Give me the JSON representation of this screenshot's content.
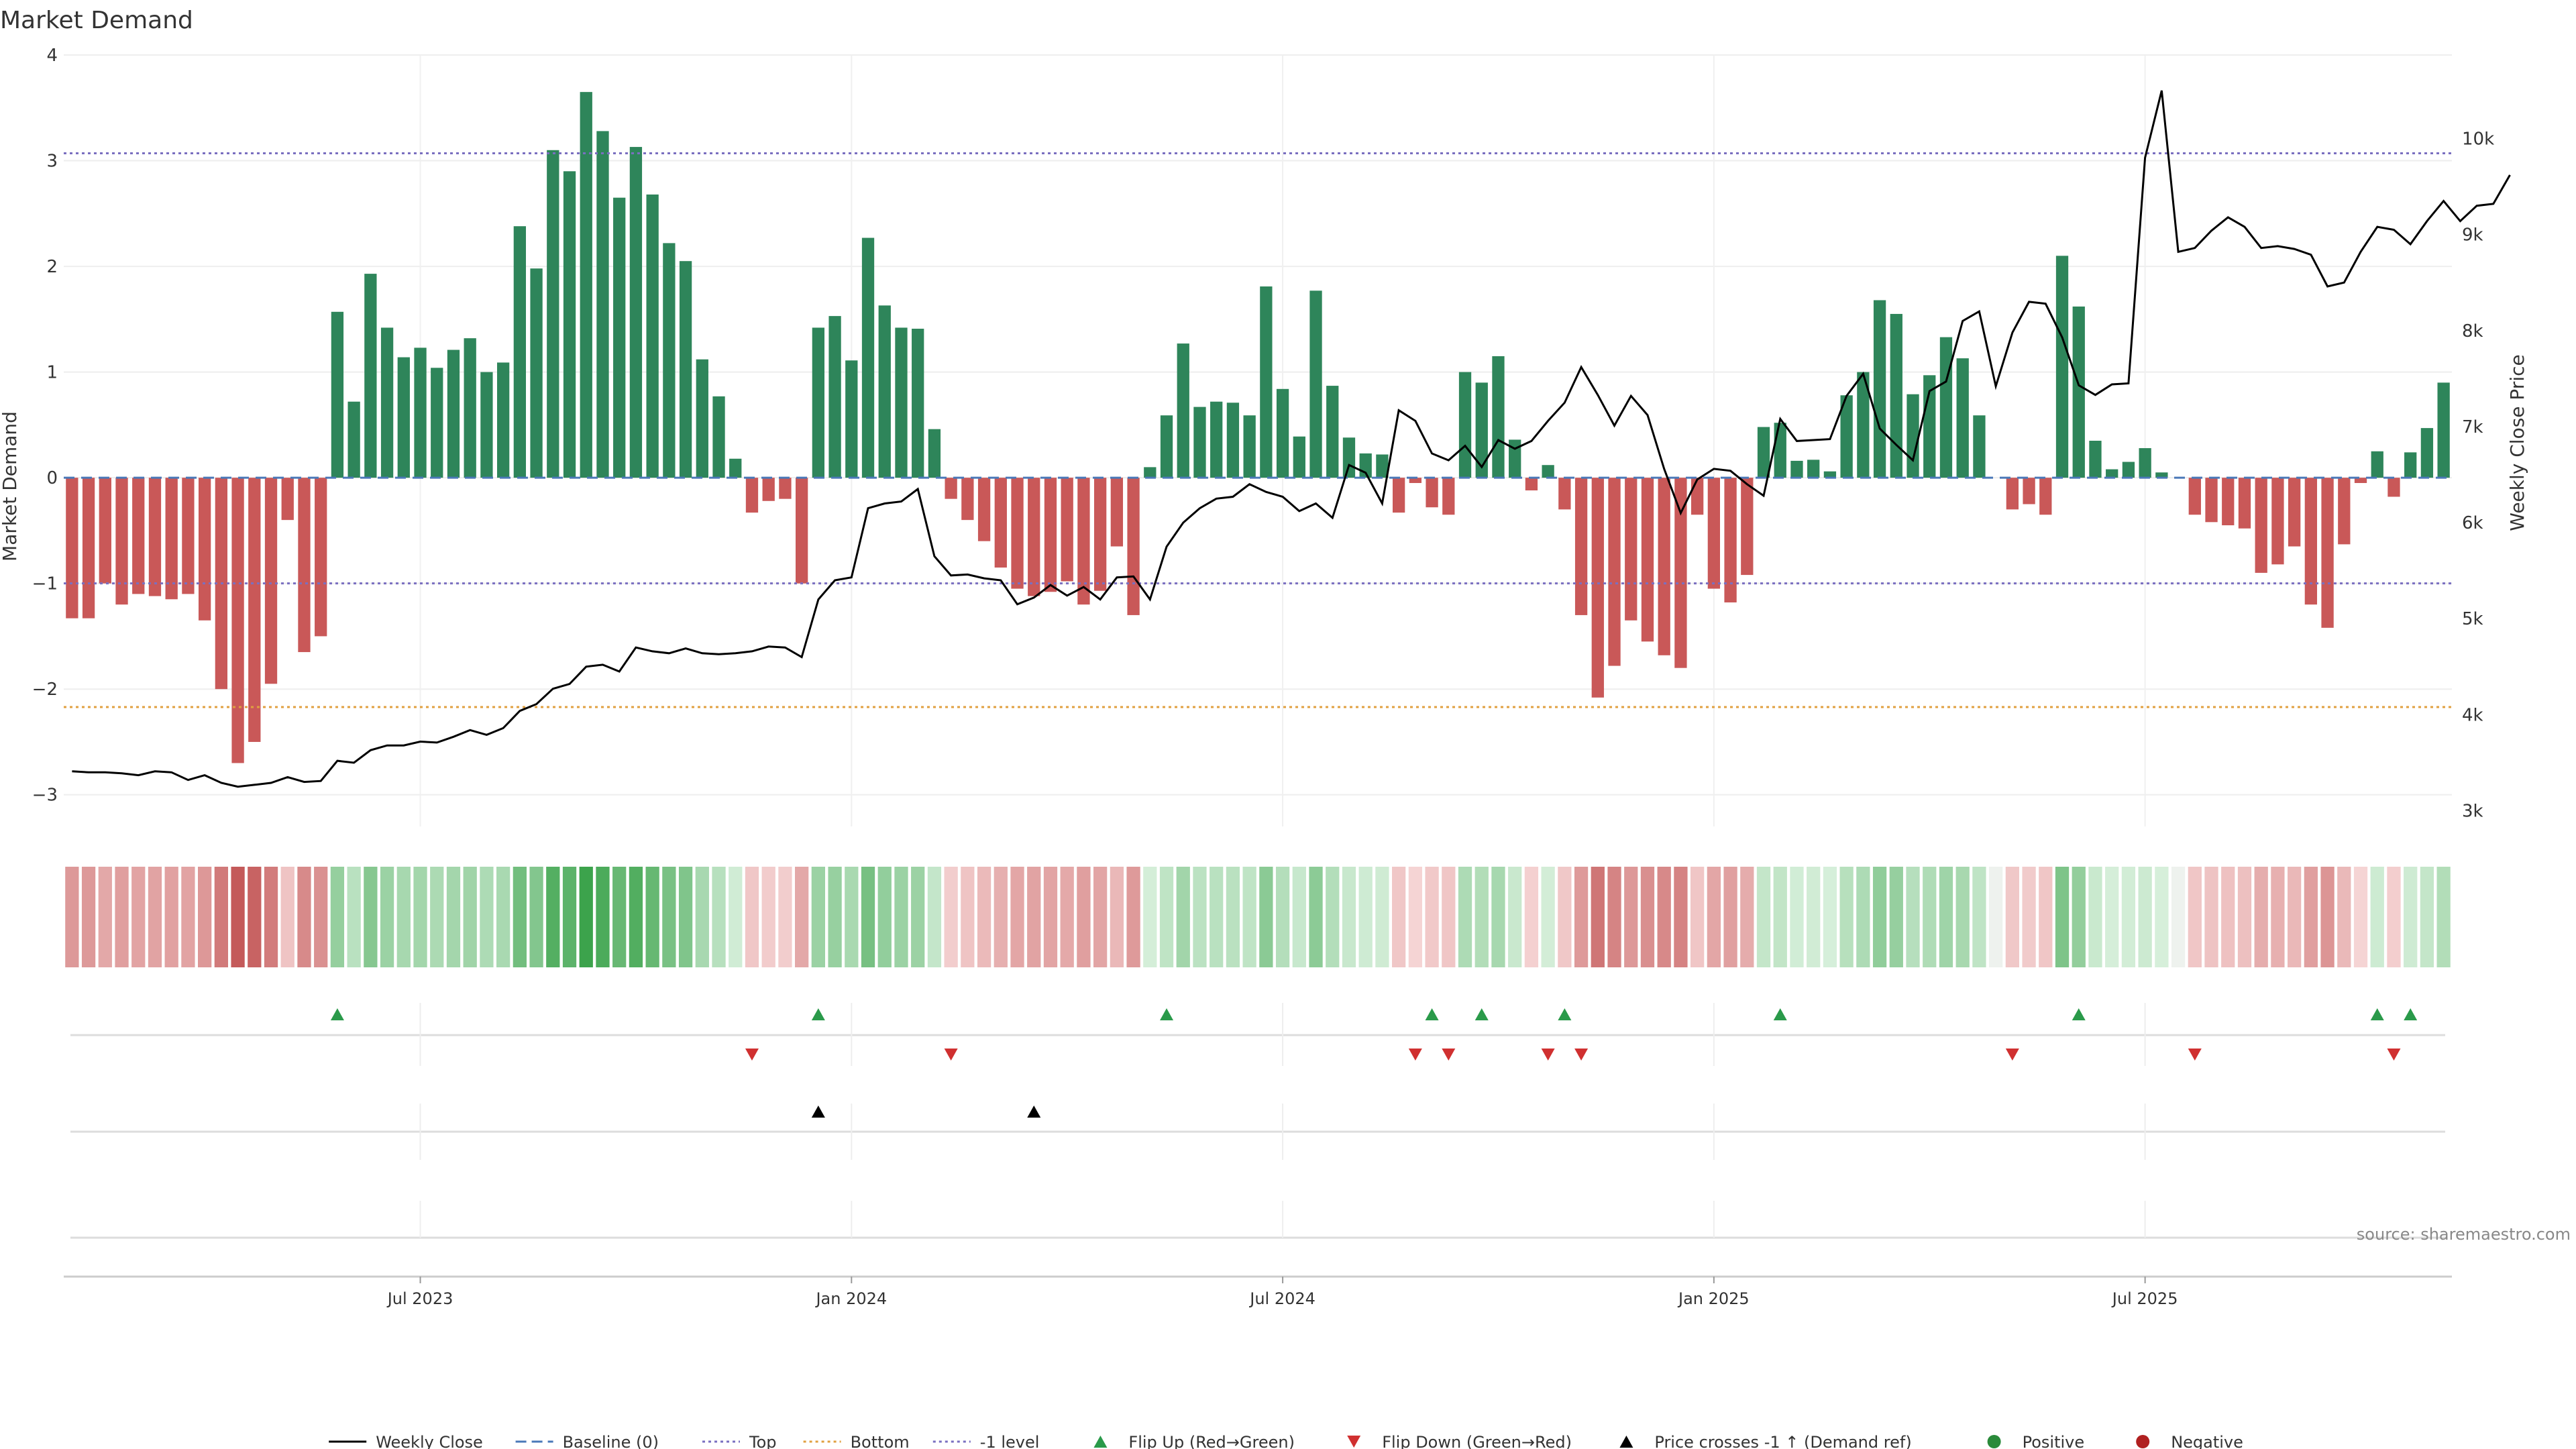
{
  "chart_data": {
    "type": "bar",
    "title": "Market Demand",
    "ylabel_left": "Market Demand",
    "ylabel_right": "Weekly Close Price",
    "ylim_left": [
      -3.3,
      4
    ],
    "ylim_right": [
      2836,
      10870
    ],
    "left_ticks": [
      {
        "value": 4,
        "label": "4"
      },
      {
        "value": 3,
        "label": "3"
      },
      {
        "value": 2,
        "label": "2"
      },
      {
        "value": 1,
        "label": "1"
      },
      {
        "value": 0,
        "label": "0"
      },
      {
        "value": -1,
        "label": "−1"
      },
      {
        "value": -2,
        "label": "−2"
      },
      {
        "value": -3,
        "label": "−3"
      }
    ],
    "right_ticks": [
      {
        "value": 10000,
        "label": "10k"
      },
      {
        "value": 9000,
        "label": "9k"
      },
      {
        "value": 8000,
        "label": "8k"
      },
      {
        "value": 7000,
        "label": "7k"
      },
      {
        "value": 6000,
        "label": "6k"
      },
      {
        "value": 5000,
        "label": "5k"
      },
      {
        "value": 4000,
        "label": "4k"
      },
      {
        "value": 3000,
        "label": "3k"
      }
    ],
    "x_ticks": [
      {
        "week": 21,
        "label": "Jul 2023"
      },
      {
        "week": 47,
        "label": "Jan 2024"
      },
      {
        "week": 73,
        "label": "Jul 2024"
      },
      {
        "week": 99,
        "label": "Jan 2025"
      },
      {
        "week": 125,
        "label": "Jul 2025"
      }
    ],
    "levels": {
      "top": 3.07,
      "bottom": -2.17,
      "minus_one": -1.0,
      "baseline": 0
    },
    "demand": [
      -1.33,
      -1.33,
      -1.0,
      -1.2,
      -1.1,
      -1.12,
      -1.15,
      -1.1,
      -1.35,
      -2.0,
      -2.7,
      -2.5,
      -1.95,
      -0.4,
      -1.65,
      -1.5,
      1.57,
      0.72,
      1.93,
      1.42,
      1.14,
      1.23,
      1.04,
      1.21,
      1.32,
      1.0,
      1.09,
      2.38,
      1.98,
      3.1,
      2.9,
      3.65,
      3.28,
      2.65,
      3.13,
      2.68,
      2.22,
      2.05,
      1.12,
      0.77,
      0.18,
      -0.33,
      -0.22,
      -0.2,
      -1.0,
      1.42,
      1.53,
      1.11,
      2.27,
      1.63,
      1.42,
      1.41,
      0.46,
      -0.2,
      -0.4,
      -0.6,
      -0.85,
      -1.05,
      -1.12,
      -1.08,
      -0.98,
      -1.2,
      -1.07,
      -0.65,
      -1.3,
      0.1,
      0.59,
      1.27,
      0.67,
      0.72,
      0.71,
      0.59,
      1.81,
      0.84,
      0.39,
      1.77,
      0.87,
      0.38,
      0.23,
      0.22,
      -0.33,
      -0.05,
      -0.28,
      -0.35,
      1.0,
      0.9,
      1.15,
      0.36,
      -0.12,
      0.12,
      -0.3,
      -1.3,
      -2.08,
      -1.78,
      -1.35,
      -1.55,
      -1.68,
      -1.8,
      -0.35,
      -1.05,
      -1.18,
      -0.92,
      0.48,
      0.52,
      0.16,
      0.17,
      0.06,
      0.78,
      1.0,
      1.68,
      1.55,
      0.79,
      0.97,
      1.33,
      1.13,
      0.59,
      0.0,
      -0.3,
      -0.25,
      -0.35,
      2.1,
      1.62,
      0.35,
      0.08,
      0.15,
      0.28,
      0.05,
      0.0,
      -0.35,
      -0.42,
      -0.45,
      -0.48,
      -0.9,
      -0.82,
      -0.65,
      -1.2,
      -1.42,
      -0.63,
      -0.05,
      0.25,
      -0.18,
      0.24,
      0.47,
      0.9
    ],
    "weekly_close": [
      3410,
      3400,
      3400,
      3390,
      3370,
      3410,
      3400,
      3320,
      3370,
      3290,
      3250,
      3270,
      3290,
      3350,
      3300,
      3310,
      3520,
      3500,
      3630,
      3680,
      3680,
      3720,
      3710,
      3770,
      3840,
      3790,
      3860,
      4040,
      4110,
      4270,
      4320,
      4500,
      4520,
      4450,
      4700,
      4660,
      4640,
      4690,
      4640,
      4630,
      4640,
      4660,
      4710,
      4700,
      4600,
      5200,
      5400,
      5430,
      6150,
      6200,
      6220,
      6350,
      5650,
      5450,
      5460,
      5420,
      5400,
      5150,
      5220,
      5350,
      5240,
      5330,
      5200,
      5430,
      5440,
      5200,
      5750,
      6000,
      6150,
      6250,
      6270,
      6400,
      6320,
      6270,
      6120,
      6200,
      6050,
      6600,
      6520,
      6200,
      7170,
      7060,
      6720,
      6650,
      6800,
      6580,
      6860,
      6770,
      6850,
      7060,
      7250,
      7620,
      7330,
      7010,
      7320,
      7120,
      6560,
      6100,
      6450,
      6560,
      6540,
      6400,
      6280,
      7080,
      6850,
      6860,
      6870,
      7320,
      7550,
      6980,
      6810,
      6650,
      7370,
      7470,
      8100,
      8200,
      7420,
      7980,
      8300,
      8280,
      7930,
      7430,
      7330,
      7440,
      7450,
      9800,
      10500,
      8820,
      8860,
      9040,
      9180,
      9080,
      8860,
      8880,
      8850,
      8790,
      8460,
      8500,
      8820,
      9080,
      9050,
      8900,
      9140,
      9350,
      9140,
      9300,
      9320,
      9620
    ],
    "heat_strip": "weekly demand shading (same series as bars)",
    "markers": {
      "flip_up_weeks": [
        16,
        45,
        66,
        82,
        85,
        90,
        103,
        121,
        139,
        141
      ],
      "flip_down_weeks": [
        41,
        53,
        81,
        83,
        89,
        91,
        117,
        128,
        140
      ],
      "price_cross_weeks": [
        45,
        58
      ],
      "positive_weeks": [],
      "negative_weeks": []
    },
    "legend": [
      {
        "key": "weekly_close",
        "label": "Weekly Close",
        "style": "line",
        "color": "#000000"
      },
      {
        "key": "baseline",
        "label": "Baseline (0)",
        "style": "dash",
        "color": "#4a78b8"
      },
      {
        "key": "top",
        "label": "Top",
        "style": "dot",
        "color": "#7a6fc0"
      },
      {
        "key": "bottom",
        "label": "Bottom",
        "style": "dot",
        "color": "#e0a040"
      },
      {
        "key": "minus_one",
        "label": "-1 level",
        "style": "dot",
        "color": "#7a6fc0"
      },
      {
        "key": "flip_up",
        "label": "Flip Up (Red→Green)",
        "style": "tri-up",
        "color": "#2a9a4a"
      },
      {
        "key": "flip_down",
        "label": "Flip Down (Green→Red)",
        "style": "tri-down",
        "color": "#d03030"
      },
      {
        "key": "price_cross",
        "label": "Price crosses -1 ↑ (Demand ref)",
        "style": "tri-up",
        "color": "#000000"
      },
      {
        "key": "positive",
        "label": "Positive",
        "style": "dot-circle",
        "color": "#2a8a3a"
      },
      {
        "key": "negative",
        "label": "Negative",
        "style": "dot-circle",
        "color": "#b02020"
      }
    ],
    "legend_position": "bottom-center",
    "source": "source: sharemaestro.com",
    "colors": {
      "positive_bar": "#2e855a",
      "negative_bar": "#c95858",
      "price_line": "#000000"
    }
  }
}
